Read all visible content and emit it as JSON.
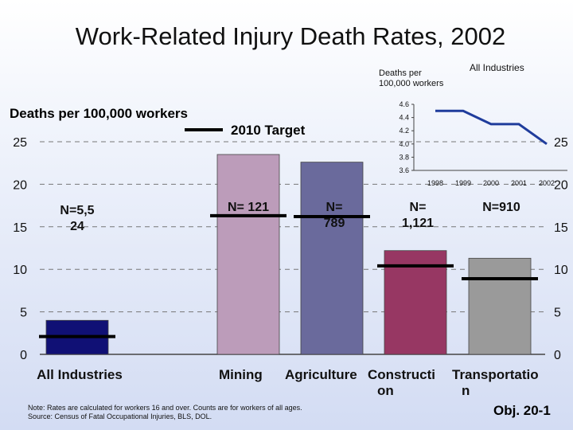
{
  "slide": {
    "title": "Work-Related Injury Death Rates, 2002",
    "footnote_line1": "Note: Rates are calculated for workers 16 and over.  Counts are for workers of all ages.",
    "footnote_line2": "Source: Census of Fatal Occupational Injuries, BLS, DOL.",
    "objective": "Obj. 20-1"
  },
  "chart_data": [
    {
      "type": "bar",
      "ylabel": "Deaths per 100,000 workers",
      "ylim": [
        0,
        25
      ],
      "yticks": [
        0,
        5,
        10,
        15,
        20,
        25
      ],
      "grid": true,
      "categories": [
        "All Industries",
        "Mining",
        "Agriculture",
        "Construction",
        "Transportation"
      ],
      "category_labels": [
        [
          "All Industries"
        ],
        [
          "Mining"
        ],
        [
          "Agriculture"
        ],
        [
          "Constructi",
          "on"
        ],
        [
          "Transportatio",
          "n"
        ]
      ],
      "values": [
        4.0,
        23.5,
        22.6,
        12.2,
        11.3
      ],
      "target_legend": "2010 Target",
      "targets": [
        2.1,
        16.3,
        16.2,
        10.4,
        8.9
      ],
      "count_labels": [
        [
          "N=5,5",
          "24"
        ],
        [
          "N= 121"
        ],
        [
          "N=",
          "789"
        ],
        [
          "N=",
          "1,121"
        ],
        [
          "N=910"
        ]
      ],
      "colors": [
        "#101075",
        "#bc9cba",
        "#6a6a9c",
        "#973763",
        "#9a9a9a"
      ]
    },
    {
      "type": "line",
      "title": "All Industries",
      "ylabel": "Deaths per 100,000 workers",
      "x": [
        1998,
        1999,
        2000,
        2001,
        2002
      ],
      "x_tick_labels": [
        "1998",
        "1999",
        "2000",
        "2001",
        "2002"
      ],
      "series": [
        {
          "values": [
            4.5,
            4.5,
            4.3,
            4.3,
            4.0
          ]
        }
      ],
      "ylim": [
        3.6,
        4.6
      ],
      "yticks": [
        "3.6",
        "3.8",
        "4.0",
        "4.2",
        "4.4",
        "4.6"
      ],
      "color": "#1f3c9c"
    }
  ]
}
